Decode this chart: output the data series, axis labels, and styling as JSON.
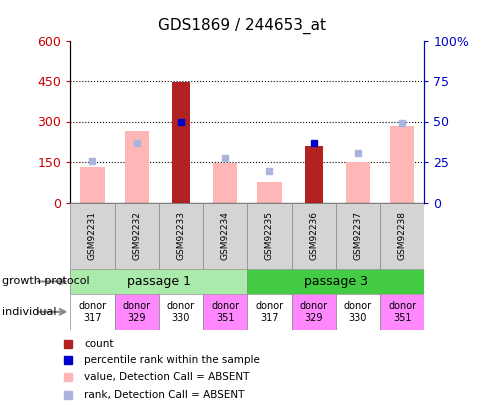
{
  "title": "GDS1869 / 244653_at",
  "samples": [
    "GSM92231",
    "GSM92232",
    "GSM92233",
    "GSM92234",
    "GSM92235",
    "GSM92236",
    "GSM92237",
    "GSM92238"
  ],
  "count_values": [
    0,
    0,
    447,
    0,
    0,
    210,
    0,
    0
  ],
  "count_color": "#b22222",
  "value_absent": [
    130,
    265,
    0,
    148,
    75,
    0,
    150,
    285
  ],
  "value_absent_color": "#ffb6b6",
  "rank_absent": [
    155,
    220,
    0,
    165,
    115,
    0,
    185,
    295
  ],
  "rank_absent_color": "#aab4dd",
  "percentile_rank": [
    0,
    0,
    300,
    0,
    0,
    220,
    0,
    0
  ],
  "percentile_rank_color": "#0000cc",
  "ylim_left": [
    0,
    600
  ],
  "ylim_right": [
    0,
    100
  ],
  "yticks_left": [
    0,
    150,
    300,
    450,
    600
  ],
  "yticks_right": [
    0,
    25,
    50,
    75,
    100
  ],
  "ytick_labels_right": [
    "0",
    "25",
    "50",
    "75",
    "100%"
  ],
  "ytick_color_left": "#cc0000",
  "ytick_color_right": "#0000cc",
  "grid_yticks": [
    150,
    300,
    450
  ],
  "passage_groups": [
    {
      "label": "passage 1",
      "start": 0,
      "end": 4,
      "color": "#aaeaaa"
    },
    {
      "label": "passage 3",
      "start": 4,
      "end": 8,
      "color": "#44cc44"
    }
  ],
  "individuals": [
    "donor\n317",
    "donor\n329",
    "donor\n330",
    "donor\n351",
    "donor\n317",
    "donor\n329",
    "donor\n330",
    "donor\n351"
  ],
  "individual_colors": [
    "#ffffff",
    "#ff88ff",
    "#ffffff",
    "#ff88ff",
    "#ffffff",
    "#ff88ff",
    "#ffffff",
    "#ff88ff"
  ],
  "legend_items": [
    {
      "label": "count",
      "color": "#b22222"
    },
    {
      "label": "percentile rank within the sample",
      "color": "#0000cc"
    },
    {
      "label": "value, Detection Call = ABSENT",
      "color": "#ffb6b6"
    },
    {
      "label": "rank, Detection Call = ABSENT",
      "color": "#aab4dd"
    }
  ],
  "growth_protocol_label": "growth protocol",
  "individual_label": "individual",
  "sample_bg_color": "#d4d4d4",
  "bar_width": 0.4,
  "value_bar_width": 0.55
}
